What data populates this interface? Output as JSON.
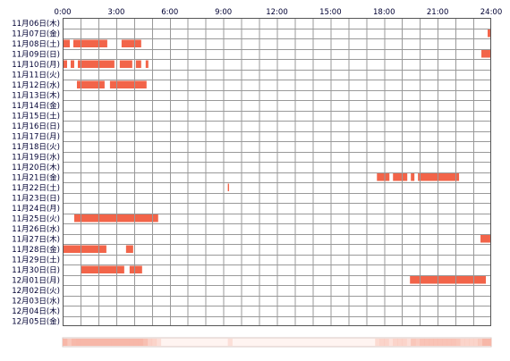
{
  "chart_data": {
    "type": "heatmap",
    "x_ticks": [
      "0:00",
      "3:00",
      "6:00",
      "9:00",
      "12:00",
      "15:00",
      "18:00",
      "21:00",
      "24:00"
    ],
    "xlim": [
      0,
      24
    ],
    "rows": [
      {
        "label": "11月06日(木)",
        "segments": []
      },
      {
        "label": "11月07日(金)",
        "segments": [
          [
            23.8,
            24.0
          ]
        ]
      },
      {
        "label": "11月08日(土)",
        "segments": [
          [
            0.0,
            0.4
          ],
          [
            0.6,
            2.5
          ],
          [
            3.3,
            4.4
          ]
        ]
      },
      {
        "label": "11月09日(日)",
        "segments": [
          [
            23.45,
            24.0
          ]
        ]
      },
      {
        "label": "11月10日(月)",
        "segments": [
          [
            0.0,
            0.25
          ],
          [
            0.45,
            0.65
          ],
          [
            0.85,
            2.9
          ],
          [
            3.2,
            3.9
          ],
          [
            4.1,
            4.4
          ],
          [
            4.65,
            4.8
          ]
        ]
      },
      {
        "label": "11月11日(火)",
        "segments": []
      },
      {
        "label": "11月12日(水)",
        "segments": [
          [
            0.8,
            2.35
          ],
          [
            2.65,
            4.7
          ]
        ]
      },
      {
        "label": "11月13日(木)",
        "segments": []
      },
      {
        "label": "11月14日(金)",
        "segments": []
      },
      {
        "label": "11月15日(土)",
        "segments": []
      },
      {
        "label": "11月16日(日)",
        "segments": []
      },
      {
        "label": "11月17日(月)",
        "segments": []
      },
      {
        "label": "11月18日(火)",
        "segments": []
      },
      {
        "label": "11月19日(水)",
        "segments": []
      },
      {
        "label": "11月20日(木)",
        "segments": []
      },
      {
        "label": "11月21日(金)",
        "segments": [
          [
            17.6,
            18.3
          ],
          [
            18.5,
            19.3
          ],
          [
            19.5,
            19.7
          ],
          [
            19.9,
            22.2
          ]
        ]
      },
      {
        "label": "11月22日(土)",
        "segments": [
          [
            9.25,
            9.32
          ]
        ]
      },
      {
        "label": "11月23日(日)",
        "segments": []
      },
      {
        "label": "11月24日(月)",
        "segments": []
      },
      {
        "label": "11月25日(火)",
        "segments": [
          [
            0.65,
            5.35
          ]
        ]
      },
      {
        "label": "11月26日(水)",
        "segments": []
      },
      {
        "label": "11月27日(木)",
        "segments": [
          [
            23.4,
            24.0
          ]
        ]
      },
      {
        "label": "11月28日(金)",
        "segments": [
          [
            0.0,
            2.45
          ],
          [
            3.55,
            3.95
          ]
        ]
      },
      {
        "label": "11月29日(土)",
        "segments": []
      },
      {
        "label": "11月30日(日)",
        "segments": [
          [
            1.05,
            3.45
          ],
          [
            3.75,
            4.45
          ]
        ]
      },
      {
        "label": "12月01日(月)",
        "segments": [
          [
            19.45,
            23.7
          ]
        ]
      },
      {
        "label": "12月02日(火)",
        "segments": []
      },
      {
        "label": "12月03日(水)",
        "segments": []
      },
      {
        "label": "12月04日(木)",
        "segments": []
      },
      {
        "label": "12月05日(金)",
        "segments": []
      }
    ],
    "colors": {
      "bar": "#f26449",
      "grid": "#999999",
      "border": "#555555",
      "text": "#000033",
      "summary_base": "#fff4f1",
      "summary_strong": "#f7b7a8"
    }
  }
}
